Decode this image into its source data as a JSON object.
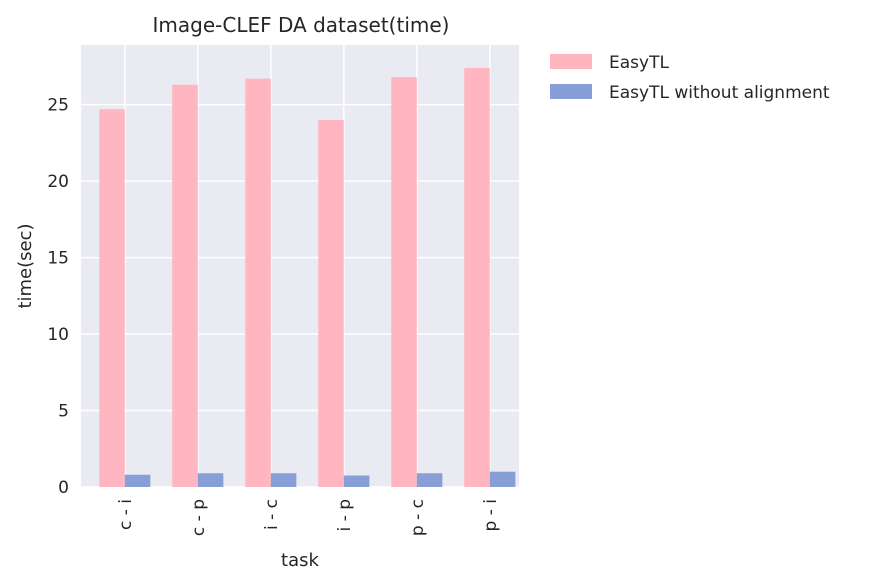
{
  "chart_data": {
    "type": "bar",
    "title": "Image-CLEF DA dataset(time)",
    "xlabel": "task",
    "ylabel": "time(sec)",
    "categories": [
      "c - i",
      "c - p",
      "i - c",
      "i - p",
      "p - c",
      "p - i"
    ],
    "series": [
      {
        "name": "EasyTL",
        "color": "#ffb6c1",
        "values": [
          24.7,
          26.3,
          26.7,
          24.0,
          26.8,
          27.4
        ]
      },
      {
        "name": "EasyTL without alignment",
        "color": "#879fd6",
        "values": [
          0.8,
          0.9,
          0.9,
          0.75,
          0.9,
          1.0
        ]
      }
    ],
    "ylim": [
      0,
      28.9
    ],
    "yticks": [
      0,
      5,
      10,
      15,
      20,
      25
    ],
    "grid": true,
    "plot_background": "#eaeaf2",
    "legend_position": "outside-top-right"
  }
}
